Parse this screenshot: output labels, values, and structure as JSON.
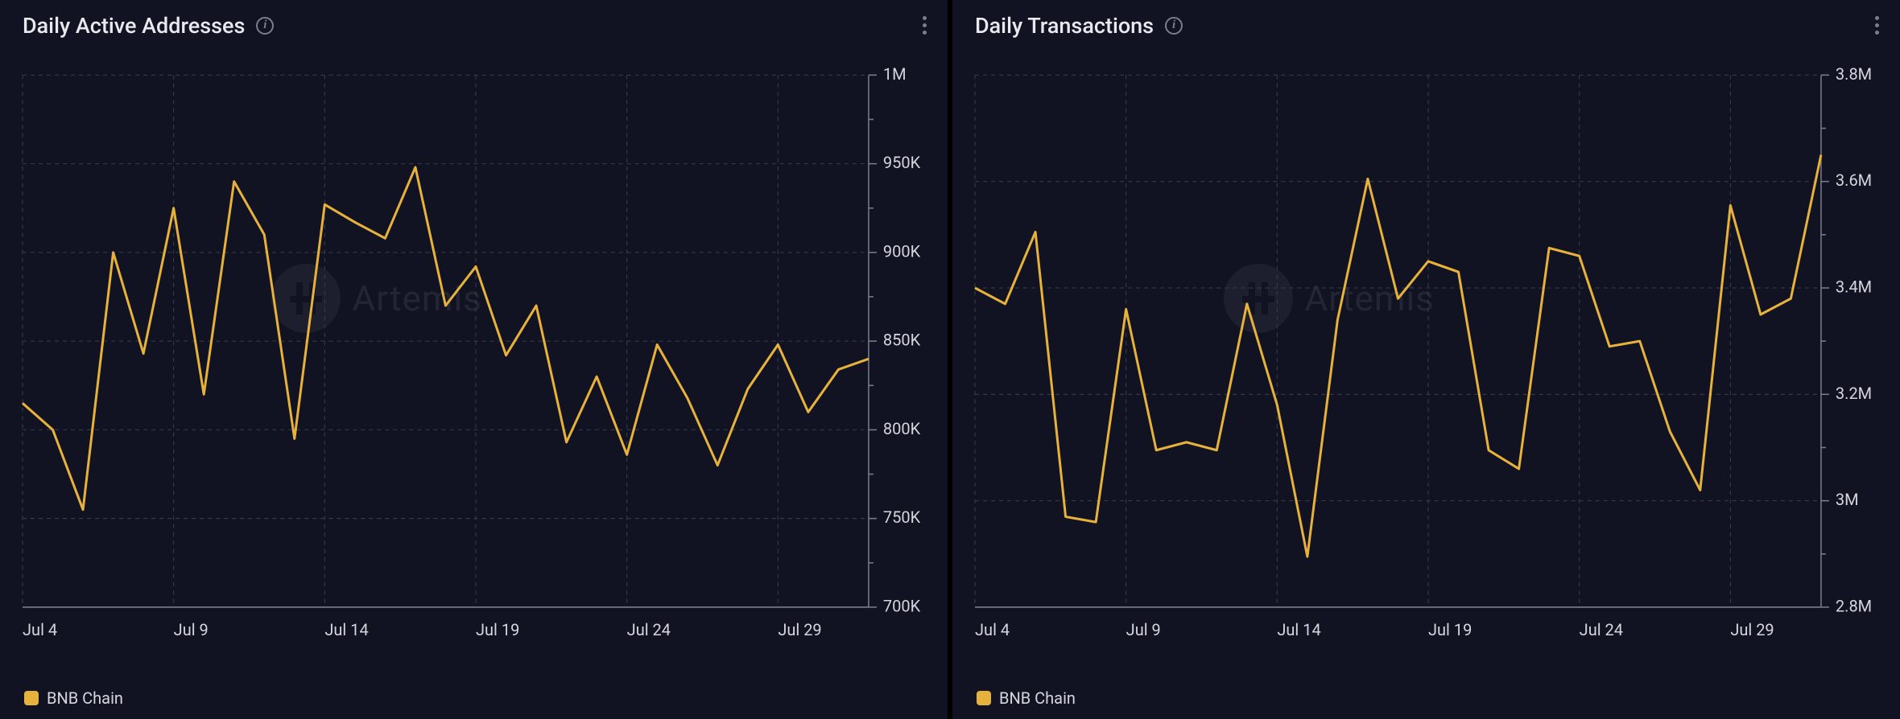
{
  "colors": {
    "background": "#111322",
    "grid": "#3a3d4d",
    "axis": "#7a7d8a",
    "series": "#e7b23b",
    "text": "#d5d6dd",
    "title": "#e8e9ef"
  },
  "watermark_label": "Artemis",
  "panels": [
    {
      "title": "Daily Active Addresses",
      "legend_label": "BNB Chain",
      "type": "line",
      "line_color": "#e7b23b",
      "line_width": 3,
      "y_axis": {
        "min": 700000,
        "max": 1000000,
        "ticks": [
          {
            "v": 700000,
            "label": "700K"
          },
          {
            "v": 750000,
            "label": "750K"
          },
          {
            "v": 800000,
            "label": "800K"
          },
          {
            "v": 850000,
            "label": "850K"
          },
          {
            "v": 900000,
            "label": "900K"
          },
          {
            "v": 950000,
            "label": "950K"
          },
          {
            "v": 1000000,
            "label": "1M"
          }
        ]
      },
      "x_axis": {
        "min": 0,
        "max": 28,
        "base_label_prefix": "Jul ",
        "ticks": [
          {
            "i": 0,
            "label": "Jul 4"
          },
          {
            "i": 5,
            "label": "Jul 9"
          },
          {
            "i": 10,
            "label": "Jul 14"
          },
          {
            "i": 15,
            "label": "Jul 19"
          },
          {
            "i": 20,
            "label": "Jul 24"
          },
          {
            "i": 25,
            "label": "Jul 29"
          }
        ]
      },
      "series": [
        {
          "i": 0,
          "v": 815000
        },
        {
          "i": 1,
          "v": 800000
        },
        {
          "i": 2,
          "v": 755000
        },
        {
          "i": 3,
          "v": 900000
        },
        {
          "i": 4,
          "v": 843000
        },
        {
          "i": 5,
          "v": 925000
        },
        {
          "i": 6,
          "v": 820000
        },
        {
          "i": 7,
          "v": 940000
        },
        {
          "i": 8,
          "v": 910000
        },
        {
          "i": 9,
          "v": 795000
        },
        {
          "i": 10,
          "v": 927000
        },
        {
          "i": 11,
          "v": 917000
        },
        {
          "i": 12,
          "v": 908000
        },
        {
          "i": 13,
          "v": 948000
        },
        {
          "i": 14,
          "v": 870000
        },
        {
          "i": 15,
          "v": 892000
        },
        {
          "i": 16,
          "v": 842000
        },
        {
          "i": 17,
          "v": 870000
        },
        {
          "i": 18,
          "v": 793000
        },
        {
          "i": 19,
          "v": 830000
        },
        {
          "i": 20,
          "v": 786000
        },
        {
          "i": 21,
          "v": 848000
        },
        {
          "i": 22,
          "v": 818000
        },
        {
          "i": 23,
          "v": 780000
        },
        {
          "i": 24,
          "v": 823000
        },
        {
          "i": 25,
          "v": 848000
        },
        {
          "i": 26,
          "v": 810000
        },
        {
          "i": 27,
          "v": 834000
        },
        {
          "i": 28,
          "v": 840000
        }
      ]
    },
    {
      "title": "Daily Transactions",
      "legend_label": "BNB Chain",
      "type": "line",
      "line_color": "#e7b23b",
      "line_width": 3,
      "y_axis": {
        "min": 2800000,
        "max": 3800000,
        "ticks": [
          {
            "v": 2800000,
            "label": "2.8M"
          },
          {
            "v": 3000000,
            "label": "3M"
          },
          {
            "v": 3200000,
            "label": "3.2M"
          },
          {
            "v": 3400000,
            "label": "3.4M"
          },
          {
            "v": 3600000,
            "label": "3.6M"
          },
          {
            "v": 3800000,
            "label": "3.8M"
          }
        ]
      },
      "x_axis": {
        "min": 0,
        "max": 28,
        "base_label_prefix": "Jul ",
        "ticks": [
          {
            "i": 0,
            "label": "Jul 4"
          },
          {
            "i": 5,
            "label": "Jul 9"
          },
          {
            "i": 10,
            "label": "Jul 14"
          },
          {
            "i": 15,
            "label": "Jul 19"
          },
          {
            "i": 20,
            "label": "Jul 24"
          },
          {
            "i": 25,
            "label": "Jul 29"
          }
        ]
      },
      "series": [
        {
          "i": 0,
          "v": 3400000
        },
        {
          "i": 1,
          "v": 3370000
        },
        {
          "i": 2,
          "v": 3505000
        },
        {
          "i": 3,
          "v": 2970000
        },
        {
          "i": 4,
          "v": 2960000
        },
        {
          "i": 5,
          "v": 3360000
        },
        {
          "i": 6,
          "v": 3095000
        },
        {
          "i": 7,
          "v": 3110000
        },
        {
          "i": 8,
          "v": 3095000
        },
        {
          "i": 9,
          "v": 3370000
        },
        {
          "i": 10,
          "v": 3180000
        },
        {
          "i": 11,
          "v": 2895000
        },
        {
          "i": 12,
          "v": 3340000
        },
        {
          "i": 13,
          "v": 3605000
        },
        {
          "i": 14,
          "v": 3380000
        },
        {
          "i": 15,
          "v": 3450000
        },
        {
          "i": 16,
          "v": 3430000
        },
        {
          "i": 17,
          "v": 3095000
        },
        {
          "i": 18,
          "v": 3060000
        },
        {
          "i": 19,
          "v": 3475000
        },
        {
          "i": 20,
          "v": 3460000
        },
        {
          "i": 21,
          "v": 3290000
        },
        {
          "i": 22,
          "v": 3300000
        },
        {
          "i": 23,
          "v": 3130000
        },
        {
          "i": 24,
          "v": 3020000
        },
        {
          "i": 25,
          "v": 3555000
        },
        {
          "i": 26,
          "v": 3350000
        },
        {
          "i": 27,
          "v": 3380000
        },
        {
          "i": 28,
          "v": 3650000
        }
      ]
    }
  ]
}
